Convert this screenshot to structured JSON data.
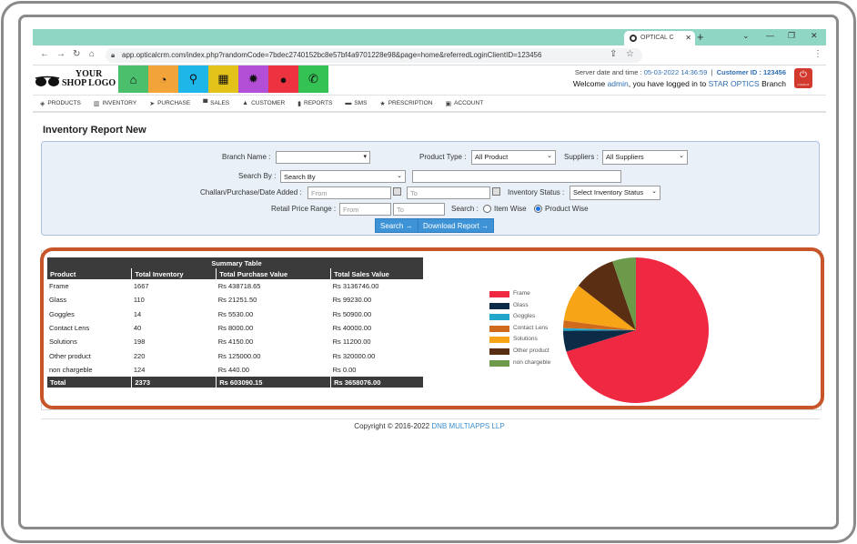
{
  "browser": {
    "tab_title": "OPTICAL C",
    "url": "app.opticalcrm.com/index.php?randomCode=7bdec2740152bc8e57bf4a9701228e98&page=home&referredLoginClientID=123456"
  },
  "header": {
    "logo_line1": "YOUR",
    "logo_line2": "SHOP LOGO",
    "tiles": [
      {
        "icon": "home-icon",
        "color": "#4bbf6b",
        "glyph": "⌂"
      },
      {
        "icon": "dashboard-icon",
        "color": "#f2a33a",
        "glyph": "◔"
      },
      {
        "icon": "search-icon",
        "color": "#1eb6e8",
        "glyph": "⚲"
      },
      {
        "icon": "grid-icon",
        "color": "#e3c21a",
        "glyph": "▦"
      },
      {
        "icon": "gear-icon",
        "color": "#b24fd6",
        "glyph": "✹"
      },
      {
        "icon": "user-icon",
        "color": "#ee3340",
        "glyph": "●"
      },
      {
        "icon": "whatsapp-icon",
        "color": "#35c254",
        "glyph": "✆"
      }
    ],
    "server_time_label": "Server date and time :",
    "server_time": "05-03-2022 14:36:59",
    "customer_id_label": "Customer ID :",
    "customer_id": "123456",
    "welcome_prefix": "Welcome",
    "user": "admin",
    "welcome_mid": ", you have logged in to",
    "branch": "STAR OPTICS",
    "welcome_suffix": "Branch",
    "logout_label": "LOGOUT"
  },
  "menu": [
    {
      "label": "PRODUCTS",
      "icon": "box-icon",
      "glyph": "◈"
    },
    {
      "label": "INVENTORY",
      "icon": "list-icon",
      "glyph": "▥"
    },
    {
      "label": "PURCHASE",
      "icon": "tag-icon",
      "glyph": "➤"
    },
    {
      "label": "SALES",
      "icon": "cart-icon",
      "glyph": "▀"
    },
    {
      "label": "CUSTOMER",
      "icon": "person-icon",
      "glyph": "▲"
    },
    {
      "label": "REPORTS",
      "icon": "file-icon",
      "glyph": "▮"
    },
    {
      "label": "SMS",
      "icon": "chat-icon",
      "glyph": "▬"
    },
    {
      "label": "PRESCRIPTION",
      "icon": "star-icon",
      "glyph": "★"
    },
    {
      "label": "ACCOUNT",
      "icon": "lock-icon",
      "glyph": "▣"
    }
  ],
  "page_title": "Inventory Report New",
  "filters": {
    "branch_label": "Branch Name :",
    "branch_value": "",
    "product_type_label": "Product Type :",
    "product_type_value": "All Product",
    "suppliers_label": "Suppliers :",
    "suppliers_value": "All Suppliers",
    "search_by_label": "Search By :",
    "search_by_value": "Search By",
    "search_text": "",
    "date_label": "Challan/Purchase/Date Added :",
    "date_from_placeholder": "From",
    "date_to_placeholder": "To",
    "inventory_status_label": "Inventory Status :",
    "inventory_status_value": "Select Inventory Status",
    "price_range_label": "Retail Price Range :",
    "price_from_placeholder": "From",
    "price_to_placeholder": "To",
    "search_mode_label": "Search :",
    "item_wise": "Item Wise",
    "product_wise": "Product Wise",
    "search_button": "Search",
    "download_button": "Download Report"
  },
  "summary": {
    "caption": "Summary Table",
    "headers": [
      "Product",
      "Total Inventory",
      "Total Purchase Value",
      "Total Sales Value"
    ],
    "rows": [
      [
        "Frame",
        "1667",
        "Rs 438718.65",
        "Rs 3136746.00"
      ],
      [
        "Glass",
        "110",
        "Rs 21251.50",
        "Rs 99230.00"
      ],
      [
        "Goggles",
        "14",
        "Rs 5530.00",
        "Rs 50900.00"
      ],
      [
        "Contact Lens",
        "40",
        "Rs 8000.00",
        "Rs 40000.00"
      ],
      [
        "Solutions",
        "198",
        "Rs 4150.00",
        "Rs 11200.00"
      ],
      [
        "Other product",
        "220",
        "Rs 125000.00",
        "Rs 320000.00"
      ],
      [
        "non chargeble",
        "124",
        "Rs 440.00",
        "Rs 0.00"
      ]
    ],
    "total": [
      "Total",
      "2373",
      "Rs 603090.15",
      "Rs 3658076.00"
    ]
  },
  "chart_data": {
    "type": "pie",
    "categories": [
      "Frame",
      "Glass",
      "Goggles",
      "Contact Lens",
      "Solutions",
      "Other product",
      "non chargeble"
    ],
    "values": [
      1667,
      110,
      14,
      40,
      198,
      220,
      124
    ],
    "colors": [
      "#ef2941",
      "#0c2b47",
      "#22a6c9",
      "#d06a1c",
      "#f7a416",
      "#5a2e12",
      "#6c9a4a"
    ],
    "legend": "left"
  },
  "footer": {
    "copyright": "Copyright © 2016-2022",
    "company": "DNB MULTIAPPS LLP"
  }
}
